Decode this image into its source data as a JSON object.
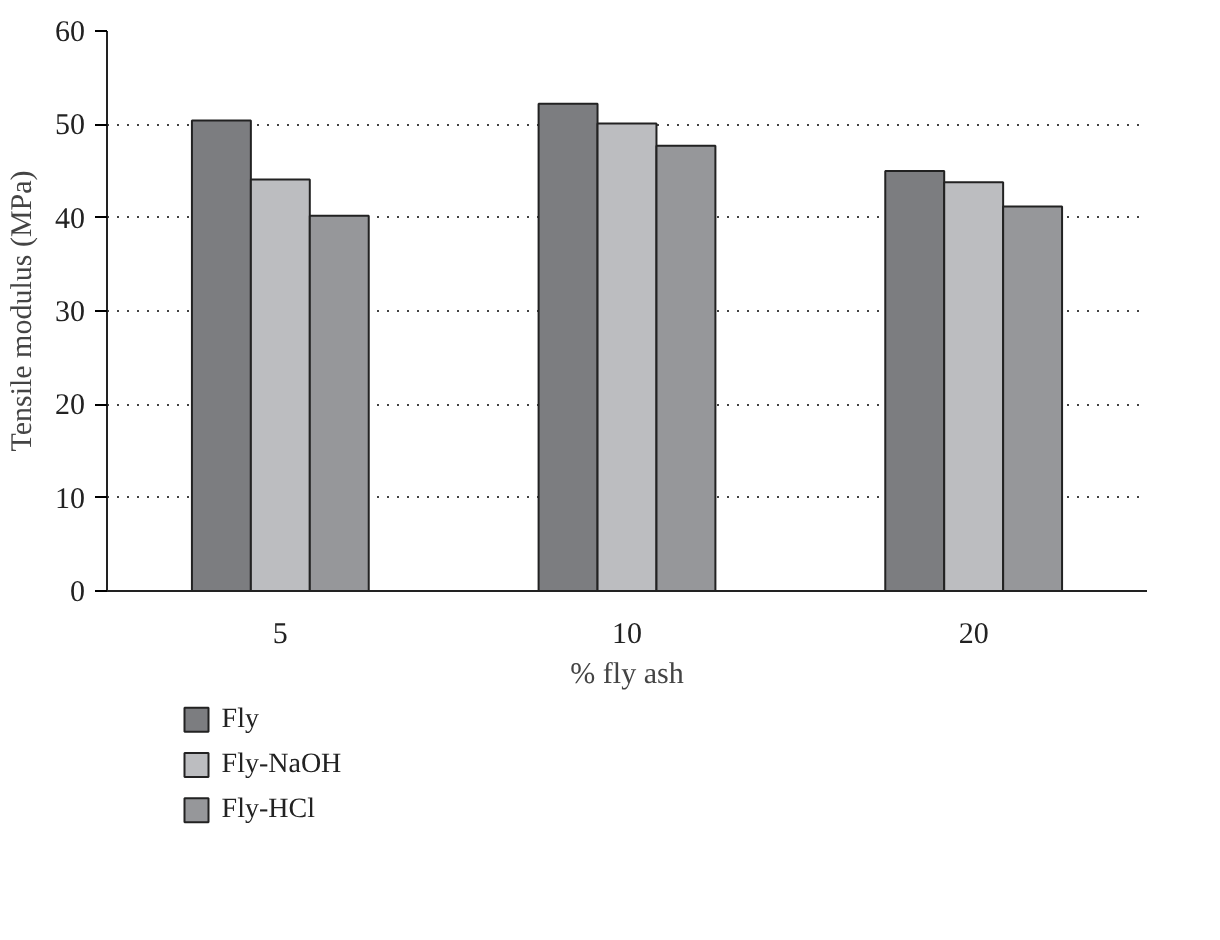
{
  "chart_data": {
    "type": "bar",
    "xlabel": "% fly ash",
    "ylabel": "Tensile modulus (MPa)",
    "categories": [
      "5",
      "10",
      "20"
    ],
    "series": [
      {
        "name": "Fly",
        "color": "#7c7d80",
        "values": [
          50.4,
          52.2,
          45.0
        ]
      },
      {
        "name": "Fly-NaOH",
        "color": "#bcbdc0",
        "values": [
          44.1,
          50.1,
          43.8
        ]
      },
      {
        "name": "Fly-HCl",
        "color": "#96979a",
        "values": [
          40.2,
          47.7,
          41.2
        ]
      }
    ],
    "ylim": [
      0,
      60
    ],
    "yticks": [
      0,
      10,
      20,
      30,
      40,
      50,
      60
    ],
    "grid": true,
    "legend": "bottom left"
  }
}
